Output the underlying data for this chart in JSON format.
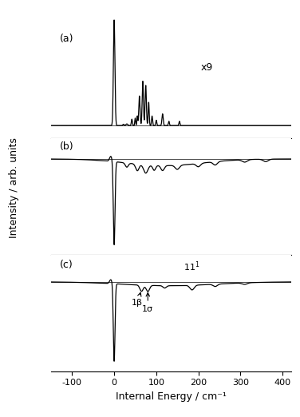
{
  "xlabel": "Internal Energy / cm⁻¹",
  "ylabel": "Intensity / arb. units",
  "xlim": [
    -150,
    420
  ],
  "xticks": [
    -100,
    0,
    100,
    200,
    300,
    400
  ],
  "xtick_labels": [
    "-100",
    "0",
    "100",
    "200",
    "300",
    "400"
  ],
  "linewidth": 0.9,
  "panel_labels": [
    "(a)",
    "(b)",
    "(c)"
  ],
  "annotation_x9": "x9",
  "label_fontsize": 9,
  "tick_fontsize": 8,
  "background_color": "#ffffff"
}
